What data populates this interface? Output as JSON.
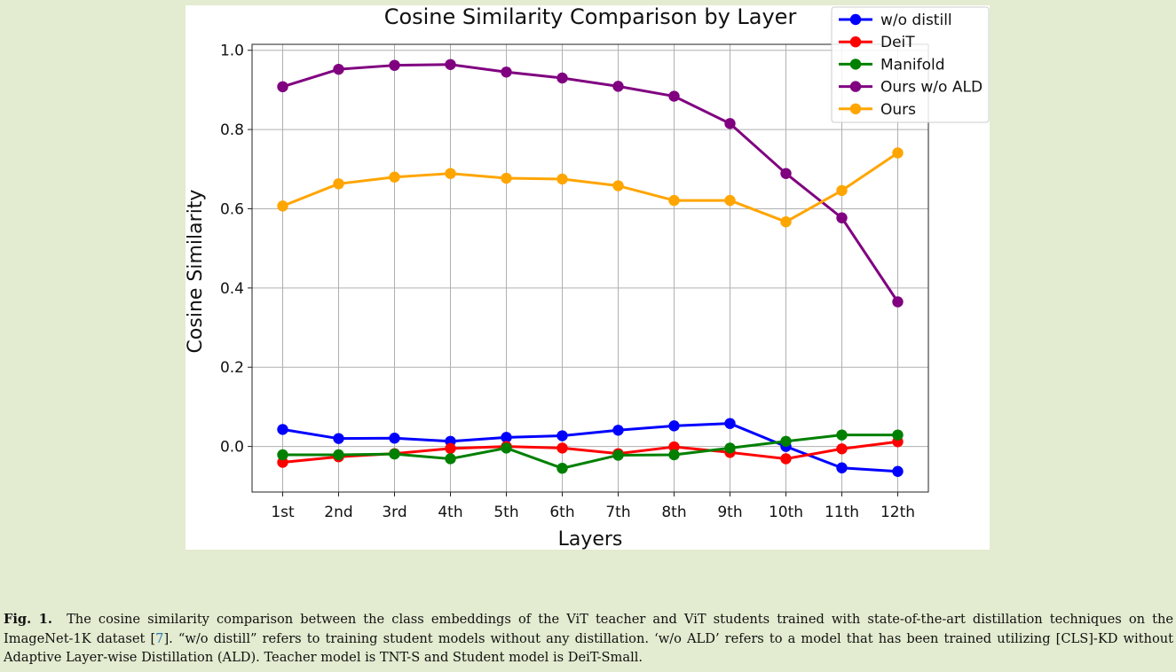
{
  "chart_data": {
    "type": "line",
    "title": "Cosine Similarity Comparison by Layer",
    "xlabel": "Layers",
    "ylabel": "Cosine Similarity",
    "categories": [
      "1st",
      "2nd",
      "3rd",
      "4th",
      "5th",
      "6th",
      "7th",
      "8th",
      "9th",
      "10th",
      "11th",
      "12th"
    ],
    "ylim": [
      -0.115,
      1.015
    ],
    "yticks": [
      0.0,
      0.2,
      0.4,
      0.6,
      0.8,
      1.0
    ],
    "ytick_labels": [
      "0.0",
      "0.2",
      "0.4",
      "0.6",
      "0.8",
      "1.0"
    ],
    "grid": true,
    "legend_position": "top-right",
    "series": [
      {
        "name": "w/o distill",
        "color": "#0000ff",
        "values": [
          0.043,
          0.02,
          0.021,
          0.013,
          0.023,
          0.027,
          0.041,
          0.052,
          0.058,
          0.0,
          -0.054,
          -0.063
        ]
      },
      {
        "name": "DeiT",
        "color": "#ff0000",
        "values": [
          -0.04,
          -0.026,
          -0.018,
          -0.005,
          0.0,
          -0.004,
          -0.018,
          -0.001,
          -0.015,
          -0.031,
          -0.006,
          0.012
        ]
      },
      {
        "name": "Manifold",
        "color": "#008000",
        "values": [
          -0.021,
          -0.021,
          -0.019,
          -0.031,
          -0.004,
          -0.055,
          -0.022,
          -0.021,
          -0.004,
          0.013,
          0.029,
          0.029
        ]
      },
      {
        "name": "Ours w/o ALD",
        "color": "#800080",
        "values": [
          0.908,
          0.952,
          0.962,
          0.964,
          0.945,
          0.93,
          0.909,
          0.884,
          0.815,
          0.689,
          0.577,
          0.365
        ]
      },
      {
        "name": "Ours",
        "color": "#ffa500",
        "values": [
          0.607,
          0.663,
          0.68,
          0.689,
          0.677,
          0.675,
          0.658,
          0.621,
          0.621,
          0.567,
          0.646,
          0.741
        ]
      }
    ]
  },
  "caption": {
    "label": "Fig. 1.",
    "text_before_ref": "The cosine similarity comparison between the class embeddings of the ViT teacher and ViT students trained with state-of-the-art distillation techniques on the ImageNet-1K dataset [",
    "ref": "7",
    "text_after_ref": "]. “w/o distill” refers to training student models without any distillation. ‘w/o ALD’ refers to a model that has been trained utilizing [CLS]-KD without Adaptive Layer-wise Distillation (ALD). Teacher model is TNT-S and Student model is DeiT-Small."
  }
}
